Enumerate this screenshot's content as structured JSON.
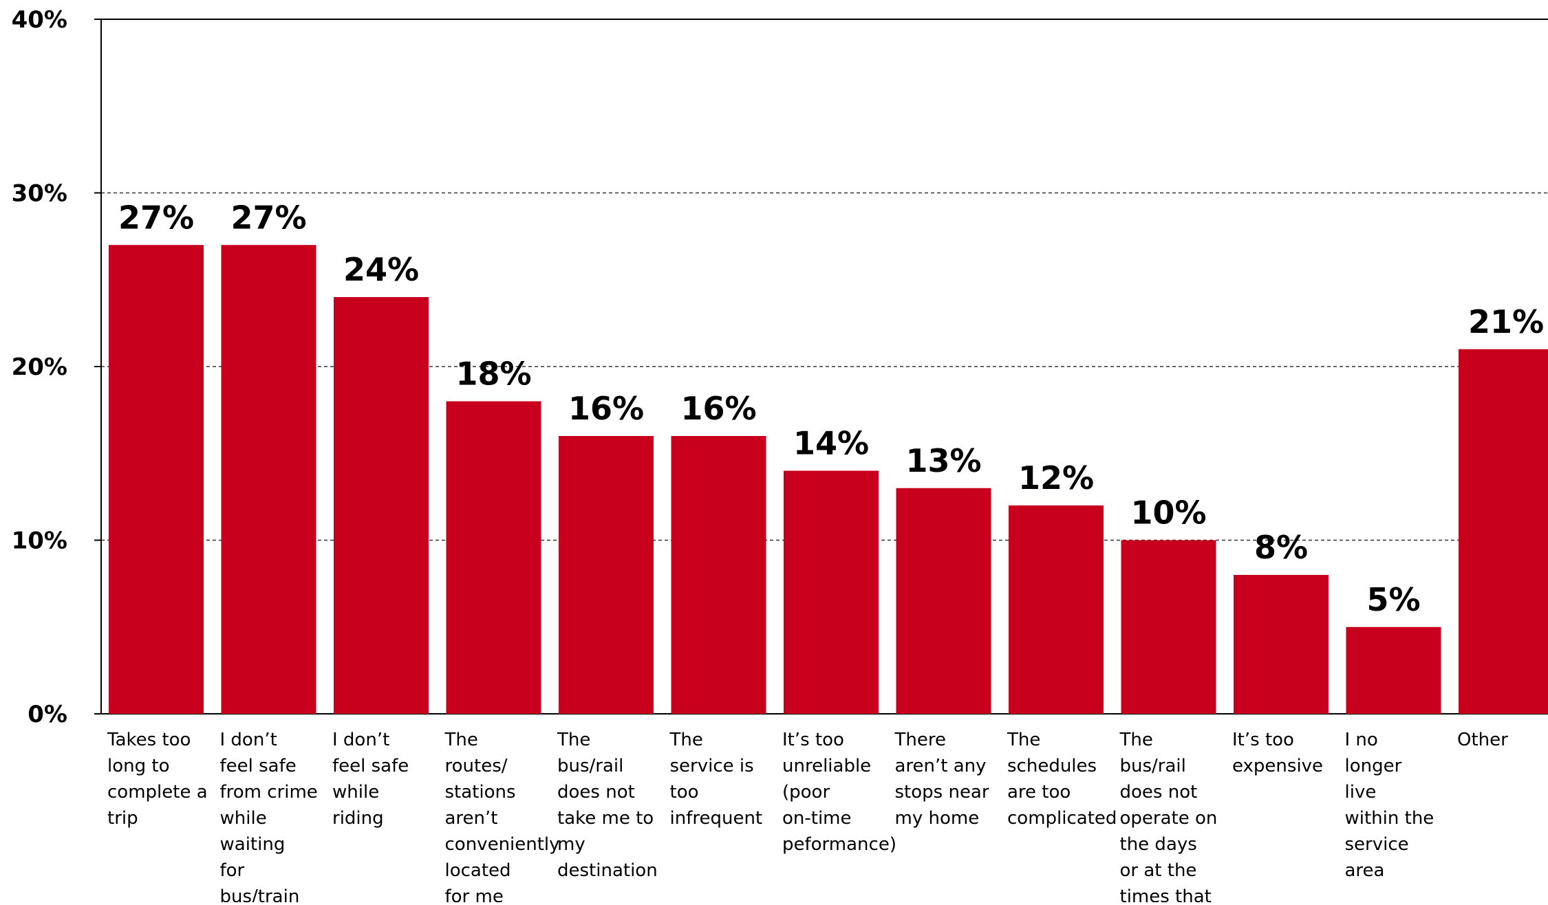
{
  "chart_data": {
    "type": "bar",
    "title": "",
    "xlabel": "",
    "ylabel": "",
    "ylim": [
      0,
      40
    ],
    "yticks": [
      0,
      10,
      20,
      30,
      40
    ],
    "ytick_labels": [
      "0%",
      "10%",
      "20%",
      "30%",
      "40%"
    ],
    "grid": true,
    "categories": [
      "Takes too long to complete a trip",
      "I don’t feel safe from crime while waiting for bus/train",
      "I don’t feel safe while riding",
      "The routes/ stations aren’t conveniently located for me",
      "The bus/rail does not take me to my destination",
      "The service is too infrequent",
      "It’s too unreliable (poor on-time peformance)",
      "There aren’t any stops near my home",
      "The schedules are too complicated",
      "The bus/rail does not operate on the days or at the times that I need it",
      "It’s too expensive",
      "I no longer live within the service area",
      "Other"
    ],
    "values": [
      27,
      27,
      24,
      18,
      16,
      16,
      14,
      13,
      12,
      10,
      8,
      5,
      21
    ],
    "value_labels": [
      "27%",
      "27%",
      "24%",
      "18%",
      "16%",
      "16%",
      "14%",
      "13%",
      "12%",
      "10%",
      "8%",
      "5%",
      "21%"
    ],
    "bar_color": "#c8001e"
  }
}
